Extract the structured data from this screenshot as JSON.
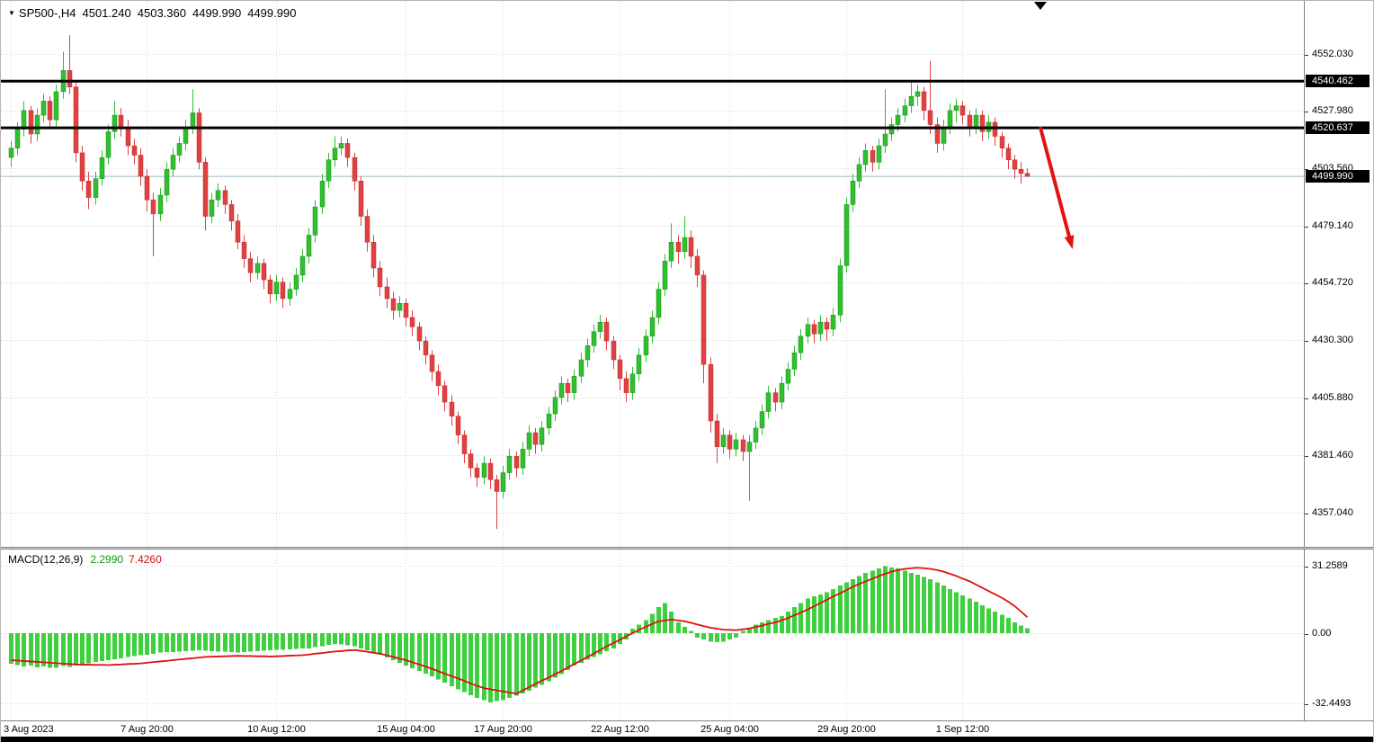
{
  "header": {
    "symbol_timeframe": "SP500-,H4",
    "open": "4501.240",
    "high": "4503.360",
    "low": "4499.990",
    "close": "4499.990"
  },
  "colors": {
    "bull": "#2fbf2f",
    "bull_stroke": "#1e8e1e",
    "bear": "#e14040",
    "bear_stroke": "#b93030",
    "histogram": "#3ed03e",
    "signal_line": "#dd1111",
    "grid": "#d8d8d8",
    "hline": "#000000",
    "bid_line": "#9fb6c8",
    "arrow": "#e31212",
    "badge_bg": "#000000",
    "badge_text": "#ffffff"
  },
  "chart_data": {
    "type": "candlestick",
    "symbol": "SP500-",
    "timeframe": "H4",
    "grid": "dotted",
    "price_axis": {
      "side": "right",
      "tick_values": [
        4552.03,
        4527.98,
        4503.56,
        4479.14,
        4454.72,
        4430.3,
        4405.88,
        4381.46,
        4357.04
      ]
    },
    "time_axis": {
      "labels": [
        {
          "text": "3 Aug 2023",
          "index": 0
        },
        {
          "text": "7 Aug 20:00",
          "index": 21
        },
        {
          "text": "10 Aug 12:00",
          "index": 41
        },
        {
          "text": "15 Aug 04:00",
          "index": 61
        },
        {
          "text": "17 Aug 20:00",
          "index": 76
        },
        {
          "text": "22 Aug 12:00",
          "index": 94
        },
        {
          "text": "25 Aug 04:00",
          "index": 111
        },
        {
          "text": "29 Aug 20:00",
          "index": 129
        },
        {
          "text": "1 Sep 12:00",
          "index": 147
        }
      ]
    },
    "horizontal_lines": [
      {
        "value": 4540.462,
        "label": "4540.462",
        "color": "#000000"
      },
      {
        "value": 4520.637,
        "label": "4520.637",
        "color": "#000000"
      }
    ],
    "current_price": {
      "value": 4499.99,
      "label": "4499.990"
    },
    "trend_arrow": {
      "from": {
        "bar": 159,
        "price": 4521
      },
      "to": {
        "bar": 164,
        "price": 4469
      },
      "color": "#e31212"
    },
    "candles": [
      [
        4508,
        4515,
        4504,
        4512
      ],
      [
        4512,
        4523,
        4509,
        4520
      ],
      [
        4520,
        4532,
        4517,
        4528
      ],
      [
        4528,
        4530,
        4514,
        4518
      ],
      [
        4518,
        4529,
        4515,
        4526
      ],
      [
        4526,
        4535,
        4523,
        4532
      ],
      [
        4532,
        4534,
        4520,
        4524
      ],
      [
        4524,
        4539,
        4521,
        4536
      ],
      [
        4536,
        4553,
        4533,
        4545
      ],
      [
        4545,
        4560,
        4535,
        4538
      ],
      [
        4538,
        4540,
        4506,
        4510
      ],
      [
        4510,
        4513,
        4494,
        4498
      ],
      [
        4498,
        4502,
        4486,
        4491
      ],
      [
        4491,
        4502,
        4488,
        4499
      ],
      [
        4499,
        4511,
        4496,
        4508
      ],
      [
        4508,
        4522,
        4505,
        4519
      ],
      [
        4519,
        4532,
        4516,
        4526
      ],
      [
        4526,
        4529,
        4517,
        4521
      ],
      [
        4521,
        4524,
        4509,
        4513
      ],
      [
        4513,
        4516,
        4505,
        4509
      ],
      [
        4509,
        4512,
        4496,
        4500
      ],
      [
        4500,
        4503,
        4485,
        4490
      ],
      [
        4490,
        4493,
        4466,
        4484
      ],
      [
        4484,
        4495,
        4481,
        4492
      ],
      [
        4492,
        4506,
        4489,
        4503
      ],
      [
        4503,
        4512,
        4500,
        4509
      ],
      [
        4509,
        4517,
        4506,
        4514
      ],
      [
        4514,
        4524,
        4511,
        4521
      ],
      [
        4521,
        4537,
        4518,
        4527
      ],
      [
        4527,
        4529,
        4503,
        4506
      ],
      [
        4506,
        4508,
        4477,
        4483
      ],
      [
        4483,
        4493,
        4480,
        4490
      ],
      [
        4490,
        4497,
        4487,
        4494
      ],
      [
        4494,
        4496,
        4484,
        4488
      ],
      [
        4488,
        4490,
        4477,
        4481
      ],
      [
        4481,
        4484,
        4469,
        4472
      ],
      [
        4472,
        4475,
        4461,
        4465
      ],
      [
        4465,
        4468,
        4455,
        4459
      ],
      [
        4459,
        4466,
        4456,
        4463
      ],
      [
        4463,
        4465,
        4452,
        4456
      ],
      [
        4456,
        4458,
        4446,
        4450
      ],
      [
        4450,
        4458,
        4447,
        4455
      ],
      [
        4455,
        4457,
        4444,
        4448
      ],
      [
        4448,
        4455,
        4445,
        4452
      ],
      [
        4452,
        4461,
        4449,
        4458
      ],
      [
        4458,
        4469,
        4455,
        4466
      ],
      [
        4466,
        4478,
        4463,
        4475
      ],
      [
        4475,
        4490,
        4472,
        4487
      ],
      [
        4487,
        4501,
        4484,
        4498
      ],
      [
        4498,
        4510,
        4495,
        4507
      ],
      [
        4507,
        4517,
        4504,
        4512
      ],
      [
        4512,
        4517,
        4509,
        4514
      ],
      [
        4514,
        4516,
        4504,
        4508
      ],
      [
        4508,
        4510,
        4494,
        4498
      ],
      [
        4498,
        4500,
        4479,
        4483
      ],
      [
        4483,
        4486,
        4468,
        4472
      ],
      [
        4472,
        4475,
        4457,
        4461
      ],
      [
        4461,
        4464,
        4449,
        4453
      ],
      [
        4453,
        4457,
        4444,
        4448
      ],
      [
        4448,
        4451,
        4439,
        4443
      ],
      [
        4443,
        4449,
        4440,
        4446
      ],
      [
        4446,
        4448,
        4436,
        4440
      ],
      [
        4440,
        4443,
        4432,
        4436
      ],
      [
        4436,
        4438,
        4426,
        4430
      ],
      [
        4430,
        4432,
        4420,
        4424
      ],
      [
        4424,
        4426,
        4413,
        4417
      ],
      [
        4417,
        4420,
        4407,
        4411
      ],
      [
        4411,
        4413,
        4400,
        4404
      ],
      [
        4404,
        4407,
        4394,
        4398
      ],
      [
        4398,
        4400,
        4386,
        4390
      ],
      [
        4390,
        4392,
        4378,
        4382
      ],
      [
        4382,
        4384,
        4372,
        4376
      ],
      [
        4376,
        4378,
        4368,
        4372
      ],
      [
        4372,
        4381,
        4369,
        4378
      ],
      [
        4378,
        4380,
        4367,
        4371
      ],
      [
        4371,
        4373,
        4350,
        4366
      ],
      [
        4366,
        4377,
        4363,
        4374
      ],
      [
        4374,
        4384,
        4371,
        4381
      ],
      [
        4381,
        4383,
        4372,
        4376
      ],
      [
        4376,
        4387,
        4373,
        4384
      ],
      [
        4384,
        4394,
        4381,
        4391
      ],
      [
        4391,
        4393,
        4382,
        4386
      ],
      [
        4386,
        4396,
        4383,
        4393
      ],
      [
        4393,
        4402,
        4390,
        4399
      ],
      [
        4399,
        4409,
        4396,
        4406
      ],
      [
        4406,
        4415,
        4403,
        4412
      ],
      [
        4412,
        4414,
        4404,
        4408
      ],
      [
        4408,
        4418,
        4405,
        4415
      ],
      [
        4415,
        4425,
        4412,
        4422
      ],
      [
        4422,
        4431,
        4419,
        4428
      ],
      [
        4428,
        4437,
        4425,
        4434
      ],
      [
        4434,
        4441,
        4431,
        4438
      ],
      [
        4438,
        4440,
        4426,
        4430
      ],
      [
        4430,
        4432,
        4418,
        4422
      ],
      [
        4422,
        4424,
        4409,
        4414
      ],
      [
        4414,
        4417,
        4404,
        4408
      ],
      [
        4408,
        4419,
        4405,
        4416
      ],
      [
        4416,
        4427,
        4413,
        4424
      ],
      [
        4424,
        4435,
        4421,
        4432
      ],
      [
        4432,
        4443,
        4429,
        4440
      ],
      [
        4440,
        4455,
        4437,
        4452
      ],
      [
        4452,
        4467,
        4449,
        4464
      ],
      [
        4464,
        4480,
        4461,
        4472
      ],
      [
        4472,
        4475,
        4463,
        4468
      ],
      [
        4468,
        4483,
        4465,
        4474
      ],
      [
        4474,
        4477,
        4461,
        4466
      ],
      [
        4466,
        4469,
        4453,
        4458
      ],
      [
        4458,
        4460,
        4412,
        4420
      ],
      [
        4420,
        4423,
        4391,
        4396
      ],
      [
        4396,
        4399,
        4378,
        4385
      ],
      [
        4385,
        4393,
        4382,
        4390
      ],
      [
        4390,
        4392,
        4380,
        4384
      ],
      [
        4384,
        4391,
        4381,
        4388
      ],
      [
        4388,
        4390,
        4379,
        4383
      ],
      [
        4383,
        4390,
        4362,
        4387
      ],
      [
        4387,
        4396,
        4384,
        4393
      ],
      [
        4393,
        4403,
        4390,
        4400
      ],
      [
        4400,
        4411,
        4397,
        4408
      ],
      [
        4408,
        4410,
        4400,
        4404
      ],
      [
        4404,
        4415,
        4401,
        4412
      ],
      [
        4412,
        4421,
        4409,
        4418
      ],
      [
        4418,
        4428,
        4415,
        4425
      ],
      [
        4425,
        4435,
        4422,
        4432
      ],
      [
        4432,
        4440,
        4429,
        4437
      ],
      [
        4437,
        4439,
        4429,
        4433
      ],
      [
        4433,
        4441,
        4430,
        4438
      ],
      [
        4438,
        4440,
        4430,
        4435
      ],
      [
        4435,
        4444,
        4432,
        4441
      ],
      [
        4441,
        4465,
        4438,
        4462
      ],
      [
        4462,
        4491,
        4459,
        4488
      ],
      [
        4488,
        4501,
        4485,
        4498
      ],
      [
        4498,
        4508,
        4495,
        4505
      ],
      [
        4505,
        4514,
        4502,
        4511
      ],
      [
        4511,
        4513,
        4502,
        4506
      ],
      [
        4506,
        4516,
        4503,
        4513
      ],
      [
        4513,
        4537,
        4510,
        4518
      ],
      [
        4518,
        4525,
        4515,
        4522
      ],
      [
        4522,
        4529,
        4519,
        4526
      ],
      [
        4526,
        4533,
        4523,
        4530
      ],
      [
        4530,
        4541,
        4527,
        4534
      ],
      [
        4534,
        4539,
        4530,
        4536
      ],
      [
        4536,
        4538,
        4524,
        4528
      ],
      [
        4528,
        4549,
        4518,
        4522
      ],
      [
        4522,
        4525,
        4510,
        4514
      ],
      [
        4514,
        4524,
        4511,
        4521
      ],
      [
        4521,
        4531,
        4518,
        4528
      ],
      [
        4528,
        4533,
        4523,
        4530
      ],
      [
        4530,
        4532,
        4522,
        4526
      ],
      [
        4526,
        4528,
        4517,
        4521
      ],
      [
        4521,
        4529,
        4518,
        4526
      ],
      [
        4526,
        4528,
        4515,
        4519
      ],
      [
        4519,
        4526,
        4516,
        4523
      ],
      [
        4523,
        4525,
        4513,
        4517
      ],
      [
        4517,
        4519,
        4508,
        4512
      ],
      [
        4512,
        4514,
        4503,
        4507
      ],
      [
        4507,
        4509,
        4499,
        4503
      ],
      [
        4503,
        4506,
        4497,
        4501.2
      ],
      [
        4501.24,
        4503.36,
        4499.99,
        4499.99
      ]
    ],
    "indicator": {
      "type": "macd",
      "name": "MACD(12,26,9)",
      "value_main": "2.2990",
      "value_signal": "7.4260",
      "axis_ticks": [
        {
          "value": 31.2589,
          "label": "31.2589"
        },
        {
          "value": 0,
          "label": "0.00"
        },
        {
          "value": -32.4493,
          "label": "-32.4493"
        }
      ],
      "histogram": [
        -14.2,
        -14.8,
        -15.5,
        -15.1,
        -15.8,
        -15.5,
        -16.1,
        -16.0,
        -15.3,
        -15.7,
        -14.9,
        -14.4,
        -14.0,
        -13.4,
        -13.0,
        -12.5,
        -12.1,
        -11.6,
        -11.0,
        -10.6,
        -10.3,
        -9.9,
        -9.6,
        -9.0,
        -8.8,
        -8.7,
        -8.5,
        -8.3,
        -8.1,
        -8.0,
        -8.2,
        -8.3,
        -8.5,
        -8.6,
        -8.8,
        -9.0,
        -8.8,
        -8.6,
        -8.4,
        -8.2,
        -8.0,
        -7.8,
        -7.7,
        -7.5,
        -7.3,
        -7.1,
        -7.0,
        -6.5,
        -6.0,
        -5.5,
        -5.0,
        -5.3,
        -5.7,
        -6.0,
        -7.0,
        -8.0,
        -9.0,
        -10.0,
        -11.3,
        -12.5,
        -13.8,
        -15.0,
        -16.3,
        -17.5,
        -18.8,
        -20.0,
        -21.5,
        -23.0,
        -24.5,
        -26.0,
        -27.3,
        -28.7,
        -30.0,
        -31.0,
        -32.0,
        -31.5,
        -31.0,
        -30.0,
        -29.0,
        -28.0,
        -26.7,
        -25.3,
        -24.0,
        -22.3,
        -20.7,
        -19.0,
        -17.0,
        -15.0,
        -13.7,
        -12.3,
        -11.0,
        -9.7,
        -8.3,
        -7.0,
        -5.0,
        -3.0,
        2.0,
        4.0,
        6.0,
        9.0,
        12.0,
        14.0,
        10.0,
        5.0,
        3.0,
        1.0,
        -2.0,
        -3.0,
        -4.0,
        -4.2,
        -4.0,
        -3.0,
        -2.0,
        1.0,
        2.5,
        4.0,
        5.0,
        6.0,
        7.0,
        8.0,
        10.0,
        12.0,
        14.0,
        16.0,
        17.0,
        18.0,
        19.0,
        20.5,
        22.0,
        23.5,
        25.0,
        26.5,
        28.0,
        29.0,
        30.0,
        31.0,
        30.5,
        30.0,
        29.0,
        28.0,
        27.0,
        26.0,
        25.0,
        23.5,
        22.0,
        20.5,
        19.0,
        17.5,
        16.0,
        14.5,
        13.0,
        11.5,
        10.0,
        8.5,
        7.0,
        5.0,
        3.5,
        2.299
      ],
      "signal": [
        -12.5,
        -12.7,
        -12.9,
        -13.1,
        -13.3,
        -13.5,
        -13.7,
        -13.9,
        -14.1,
        -14.3,
        -14.5,
        -14.6,
        -14.6,
        -14.7,
        -14.7,
        -14.8,
        -14.6,
        -14.5,
        -14.3,
        -14.2,
        -14.0,
        -13.7,
        -13.4,
        -13.1,
        -12.8,
        -12.5,
        -12.2,
        -11.9,
        -11.6,
        -11.3,
        -11.0,
        -10.9,
        -10.8,
        -10.7,
        -10.6,
        -10.5,
        -10.6,
        -10.6,
        -10.7,
        -10.7,
        -10.8,
        -10.7,
        -10.6,
        -10.4,
        -10.3,
        -10.2,
        -9.9,
        -9.5,
        -9.2,
        -8.8,
        -8.5,
        -8.3,
        -8.0,
        -7.8,
        -8.2,
        -8.6,
        -9.1,
        -9.5,
        -10.3,
        -11.0,
        -11.8,
        -12.5,
        -13.5,
        -14.5,
        -15.5,
        -16.5,
        -17.6,
        -18.8,
        -19.9,
        -21.0,
        -22.1,
        -23.3,
        -24.4,
        -25.5,
        -26.0,
        -26.5,
        -27.0,
        -27.5,
        -28.0,
        -26.5,
        -25.0,
        -23.5,
        -22.0,
        -20.5,
        -19.0,
        -17.5,
        -15.9,
        -14.3,
        -12.6,
        -11.0,
        -9.4,
        -7.8,
        -6.1,
        -4.5,
        -3.0,
        -1.5,
        0.0,
        1.5,
        3.0,
        4.3,
        5.5,
        5.9,
        6.3,
        5.9,
        5.5,
        4.8,
        4.0,
        3.3,
        2.5,
        2.1,
        1.6,
        1.5,
        1.4,
        1.8,
        2.2,
        2.9,
        3.5,
        4.3,
        5.0,
        6.0,
        7.0,
        8.3,
        9.5,
        11.0,
        12.5,
        14.0,
        15.5,
        17.0,
        18.5,
        20.0,
        21.5,
        22.8,
        24.0,
        25.3,
        26.5,
        27.5,
        28.5,
        29.2,
        29.8,
        30.1,
        30.3,
        30.1,
        29.8,
        29.2,
        28.5,
        27.5,
        26.5,
        25.3,
        24.0,
        22.5,
        21.0,
        19.5,
        18.0,
        16.3,
        14.5,
        12.5,
        10.0,
        7.426
      ]
    }
  }
}
